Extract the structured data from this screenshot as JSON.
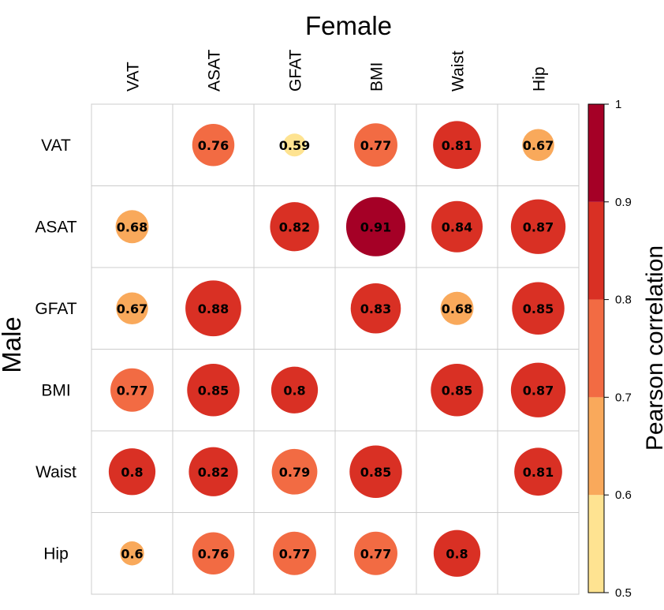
{
  "chart_data": {
    "type": "heatmap",
    "title": "Female",
    "xlabel": "Female",
    "ylabel": "Male",
    "columns": [
      "VAT",
      "ASAT",
      "GFAT",
      "BMI",
      "Waist",
      "Hip"
    ],
    "rows": [
      "VAT",
      "ASAT",
      "GFAT",
      "BMI",
      "Waist",
      "Hip"
    ],
    "values": [
      [
        null,
        0.76,
        0.59,
        0.77,
        0.81,
        0.67
      ],
      [
        0.68,
        null,
        0.82,
        0.91,
        0.84,
        0.87
      ],
      [
        0.67,
        0.88,
        null,
        0.83,
        0.68,
        0.85
      ],
      [
        0.77,
        0.85,
        0.8,
        null,
        0.85,
        0.87
      ],
      [
        0.8,
        0.82,
        0.79,
        0.85,
        null,
        0.81
      ],
      [
        0.6,
        0.76,
        0.77,
        0.77,
        0.8,
        null
      ]
    ],
    "value_labels": [
      [
        "",
        "0.76",
        "0.59",
        "0.77",
        "0.81",
        "0.67"
      ],
      [
        "0.68",
        "",
        "0.82",
        "0.91",
        "0.84",
        "0.87"
      ],
      [
        "0.67",
        "0.88",
        "",
        "0.83",
        "0.68",
        "0.85"
      ],
      [
        "0.77",
        "0.85",
        "0.8",
        "",
        "0.85",
        "0.87"
      ],
      [
        "0.8",
        "0.82",
        "0.79",
        "0.85",
        "",
        "0.81"
      ],
      [
        "0.6",
        "0.76",
        "0.77",
        "0.77",
        "0.8",
        ""
      ]
    ],
    "colorbar": {
      "label": "Pearson correlation",
      "min": 0.5,
      "max": 1,
      "ticks": [
        "0.5",
        "0.6",
        "0.7",
        "0.8",
        "0.9",
        "1"
      ],
      "bins": [
        {
          "from": 0.5,
          "to": 0.6,
          "color": "#fee391"
        },
        {
          "from": 0.6,
          "to": 0.7,
          "color": "#f9a95b"
        },
        {
          "from": 0.7,
          "to": 0.8,
          "color": "#f26b43"
        },
        {
          "from": 0.8,
          "to": 0.9,
          "color": "#d93024"
        },
        {
          "from": 0.9,
          "to": 1.0,
          "color": "#a50026"
        }
      ]
    }
  }
}
